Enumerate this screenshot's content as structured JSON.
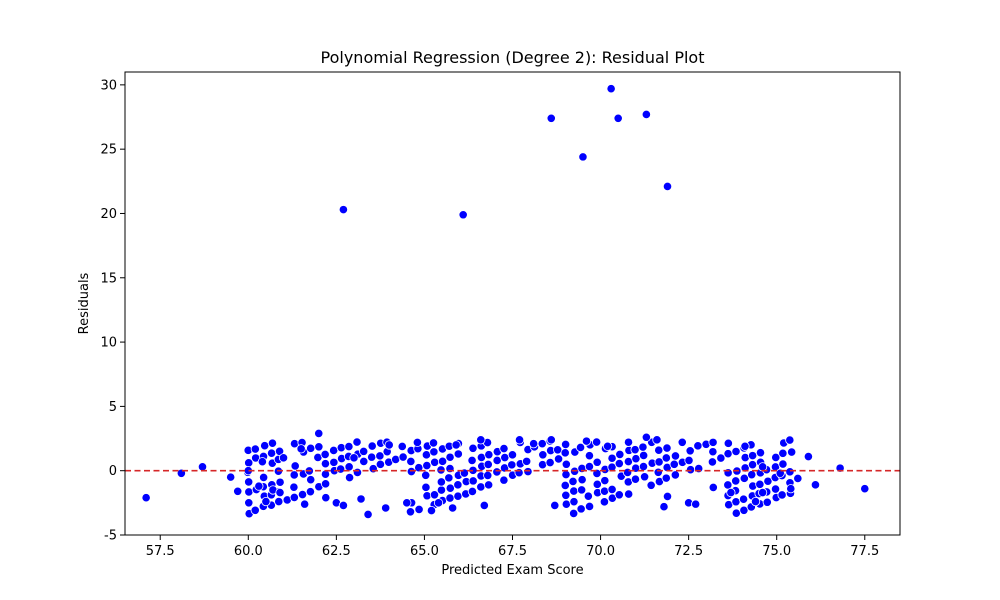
{
  "chart_data": {
    "type": "scatter",
    "title": "Polynomial Regression (Degree 2): Residual Plot",
    "xlabel": "Predicted Exam Score",
    "ylabel": "Residuals",
    "xlim": [
      56.5,
      78.5
    ],
    "ylim": [
      -5,
      31
    ],
    "xticks": [
      57.5,
      60.0,
      62.5,
      65.0,
      67.5,
      70.0,
      72.5,
      75.0,
      77.5
    ],
    "yticks": [
      -5,
      0,
      5,
      10,
      15,
      20,
      25,
      30
    ],
    "grid": false,
    "marker_color": "#0000ff",
    "reference_line": {
      "y": 0,
      "color": "#d62728",
      "style": "dashed"
    },
    "outliers": [
      {
        "x": 62.7,
        "y": 20.3
      },
      {
        "x": 66.1,
        "y": 19.9
      },
      {
        "x": 68.6,
        "y": 27.4
      },
      {
        "x": 69.5,
        "y": 24.4
      },
      {
        "x": 70.3,
        "y": 29.7
      },
      {
        "x": 70.5,
        "y": 27.4
      },
      {
        "x": 71.3,
        "y": 27.7
      },
      {
        "x": 71.9,
        "y": 22.1
      }
    ],
    "band_points": [
      {
        "x": 57.1,
        "y": -2.1
      },
      {
        "x": 58.1,
        "y": -0.2
      },
      {
        "x": 58.7,
        "y": 0.3
      },
      {
        "x": 59.5,
        "y": -0.5
      },
      {
        "x": 59.7,
        "y": -1.6
      },
      {
        "x": 60.0,
        "y": 0.0
      },
      {
        "x": 60.3,
        "y": -1.2
      },
      {
        "x": 60.4,
        "y": 0.7
      },
      {
        "x": 60.5,
        "y": -2.4
      },
      {
        "x": 60.7,
        "y": -1.5
      },
      {
        "x": 60.9,
        "y": -1.7
      },
      {
        "x": 61.0,
        "y": 1.0
      },
      {
        "x": 61.5,
        "y": 1.7
      },
      {
        "x": 61.6,
        "y": -2.6
      },
      {
        "x": 62.0,
        "y": 2.9
      },
      {
        "x": 62.2,
        "y": -2.1
      },
      {
        "x": 62.5,
        "y": -2.5
      },
      {
        "x": 62.7,
        "y": -2.7
      },
      {
        "x": 63.0,
        "y": 1.0
      },
      {
        "x": 63.2,
        "y": -2.2
      },
      {
        "x": 63.4,
        "y": -3.4
      },
      {
        "x": 63.9,
        "y": -2.9
      },
      {
        "x": 64.0,
        "y": 2.0
      },
      {
        "x": 64.5,
        "y": -2.5
      },
      {
        "x": 64.8,
        "y": 2.2
      },
      {
        "x": 65.2,
        "y": -3.1
      },
      {
        "x": 65.4,
        "y": -2.5
      },
      {
        "x": 65.8,
        "y": -2.9
      },
      {
        "x": 65.9,
        "y": 2.0
      },
      {
        "x": 66.6,
        "y": 2.4
      },
      {
        "x": 66.7,
        "y": -2.7
      },
      {
        "x": 67.7,
        "y": 2.4
      },
      {
        "x": 68.1,
        "y": 2.1
      },
      {
        "x": 68.6,
        "y": 2.4
      },
      {
        "x": 68.7,
        "y": -2.7
      },
      {
        "x": 69.6,
        "y": 2.3
      },
      {
        "x": 70.2,
        "y": 1.9
      },
      {
        "x": 71.3,
        "y": 2.6
      },
      {
        "x": 71.6,
        "y": 2.4
      },
      {
        "x": 71.8,
        "y": -2.8
      },
      {
        "x": 71.9,
        "y": -2.0
      },
      {
        "x": 72.5,
        "y": -2.5
      },
      {
        "x": 72.7,
        "y": -2.6
      },
      {
        "x": 73.2,
        "y": -1.3
      },
      {
        "x": 73.7,
        "y": -1.7
      },
      {
        "x": 74.1,
        "y": 1.9
      },
      {
        "x": 74.4,
        "y": -2.4
      },
      {
        "x": 74.6,
        "y": -1.7
      },
      {
        "x": 74.6,
        "y": 0.3
      },
      {
        "x": 75.1,
        "y": -0.2
      },
      {
        "x": 75.4,
        "y": -1.4
      },
      {
        "x": 75.6,
        "y": -0.6
      },
      {
        "x": 75.9,
        "y": 1.1
      },
      {
        "x": 76.1,
        "y": -1.1
      },
      {
        "x": 76.8,
        "y": 0.2
      },
      {
        "x": 77.5,
        "y": -1.4
      }
    ],
    "dense_band": {
      "x_range": [
        60.0,
        75.5
      ],
      "x_step": 0.22,
      "line_intercepts": [
        -3.5,
        -2.7,
        -1.9,
        -1.1,
        -0.3,
        0.5,
        1.3,
        2.1
      ],
      "line_slope": 1.0,
      "line_length": 4.6,
      "y_range": [
        -3.3,
        2.3
      ],
      "jitter": 0.1,
      "seed": 7
    }
  }
}
